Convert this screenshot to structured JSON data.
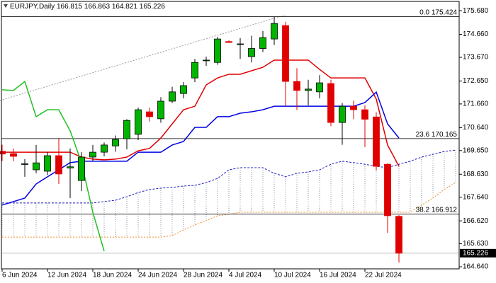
{
  "chart_data": {
    "type": "candlestick",
    "title": "EURJPY,Daily",
    "x": [
      "6 Jun 2024",
      null,
      null,
      null,
      "12 Jun 2024",
      null,
      null,
      null,
      "18 Jun 2024",
      null,
      null,
      null,
      "24 Jun 2024",
      null,
      null,
      null,
      "28 Jun 2024",
      null,
      null,
      null,
      "4 Jul 2024",
      null,
      null,
      null,
      "10 Jul 2024",
      null,
      null,
      null,
      "16 Jul 2024",
      null,
      null,
      null,
      "22 Jul 2024",
      null,
      null,
      null,
      null,
      null,
      null,
      null,
      null
    ],
    "open": [
      169.62,
      169.52,
      169.05,
      168.82,
      168.76,
      169.43,
      168.9,
      168.36,
      169.37,
      169.58,
      169.85,
      170.16,
      170.35,
      171.32,
      171.02,
      171.78,
      172.11,
      172.78,
      173.53,
      173.45,
      174.35,
      174.25,
      173.7,
      174.05,
      174.46,
      175.04,
      172.63,
      172.24,
      172.18,
      172.54,
      170.86,
      171.56,
      171.41,
      171.1,
      169.06,
      166.815,
      null,
      null,
      null,
      null,
      null
    ],
    "high": [
      169.9,
      169.73,
      169.28,
      169.89,
      169.6,
      170.19,
      169.74,
      169.58,
      169.89,
      170.0,
      170.3,
      171.0,
      171.5,
      171.5,
      171.95,
      172.4,
      172.6,
      173.6,
      173.7,
      174.55,
      174.4,
      174.5,
      174.6,
      174.8,
      175.42,
      175.2,
      173.2,
      172.7,
      172.9,
      172.7,
      171.7,
      171.8,
      171.6,
      171.3,
      169.1,
      166.863,
      null,
      null,
      null,
      null,
      null
    ],
    "low": [
      169.2,
      169.19,
      168.52,
      168.67,
      168.6,
      168.21,
      167.6,
      167.91,
      169.19,
      169.4,
      169.6,
      169.7,
      170.1,
      170.9,
      170.85,
      171.7,
      171.9,
      172.6,
      173.3,
      173.35,
      174.3,
      173.6,
      173.45,
      173.9,
      174.2,
      171.56,
      171.4,
      171.6,
      171.9,
      170.7,
      169.9,
      171.0,
      169.8,
      168.8,
      166.1,
      164.821,
      null,
      null,
      null,
      null,
      null
    ],
    "close": [
      169.5,
      169.4,
      169.08,
      169.12,
      169.43,
      168.64,
      168.95,
      169.37,
      169.58,
      169.89,
      170.13,
      170.95,
      171.41,
      171.11,
      171.78,
      172.18,
      172.45,
      173.45,
      173.55,
      174.46,
      174.31,
      174.25,
      174.05,
      174.52,
      175.13,
      172.63,
      172.24,
      172.3,
      172.57,
      170.86,
      171.56,
      171.41,
      171.0,
      168.97,
      166.84,
      165.226,
      null,
      null,
      null,
      null,
      null
    ],
    "bull_color": "#00b400",
    "bear_color": "#e00000",
    "lines": [
      {
        "color": "#e00000",
        "dash": "none",
        "values": [
          169.58,
          169.58,
          169.58,
          169.58,
          169.58,
          169.58,
          169.58,
          169.37,
          169.28,
          169.25,
          169.28,
          169.37,
          169.64,
          169.74,
          170.19,
          170.8,
          171.41,
          171.56,
          172.48,
          172.78,
          172.94,
          172.94,
          173.09,
          173.24,
          173.55,
          173.55,
          173.55,
          173.55,
          173.15,
          172.78,
          172.78,
          172.78,
          172.78,
          171.87,
          169.89,
          168.97,
          null,
          null,
          null,
          null,
          null
        ]
      },
      {
        "color": "#0000e0",
        "dash": "none",
        "values": [
          167.3,
          167.45,
          167.6,
          168.21,
          168.52,
          168.82,
          169.13,
          169.19,
          169.19,
          169.19,
          169.19,
          169.19,
          169.58,
          169.58,
          169.58,
          169.89,
          170.04,
          170.65,
          170.65,
          171.11,
          171.11,
          171.26,
          171.32,
          171.41,
          171.56,
          171.56,
          171.56,
          171.56,
          171.56,
          171.56,
          171.56,
          171.56,
          171.72,
          172.17,
          170.8,
          170.19,
          null,
          null,
          null,
          null,
          null
        ]
      },
      {
        "color": "#22c022",
        "dash": "none",
        "values": [
          172.27,
          172.24,
          172.63,
          171.11,
          171.41,
          171.41,
          170.5,
          169.13,
          166.99,
          165.31,
          null,
          null,
          null,
          null,
          null,
          null,
          null,
          null,
          null,
          null,
          null,
          null,
          null,
          null,
          null,
          null,
          null,
          null,
          null,
          null,
          null,
          null,
          null,
          null,
          null,
          null,
          null,
          null,
          null,
          null,
          null
        ]
      }
    ],
    "cloud": {
      "hatch_color": "#8890a8",
      "span_a": {
        "color": "#2020c0",
        "values": [
          167.39,
          167.39,
          167.39,
          167.39,
          167.39,
          167.39,
          167.39,
          167.39,
          167.39,
          167.45,
          167.51,
          167.66,
          167.84,
          167.97,
          168.03,
          168.06,
          168.12,
          168.15,
          168.27,
          168.45,
          168.82,
          168.91,
          168.91,
          168.91,
          168.67,
          168.52,
          168.67,
          168.73,
          168.82,
          169.06,
          169.19,
          169.13,
          169.06,
          168.97,
          168.91,
          169.06,
          169.19,
          169.37,
          169.49,
          169.61,
          169.67
        ]
      },
      "span_b": {
        "color": "#f09030",
        "values": [
          165.92,
          165.92,
          165.92,
          165.92,
          165.92,
          165.92,
          165.92,
          165.92,
          165.92,
          165.92,
          165.92,
          165.92,
          165.92,
          165.92,
          165.92,
          165.98,
          166.23,
          166.44,
          166.63,
          166.84,
          166.9,
          166.99,
          166.99,
          166.99,
          166.99,
          166.99,
          166.99,
          166.99,
          166.99,
          166.99,
          166.99,
          166.99,
          166.99,
          166.99,
          166.99,
          166.99,
          166.99,
          167.3,
          167.6,
          167.97,
          168.27
        ]
      }
    },
    "fib_levels": [
      {
        "ratio": "0.0",
        "value": 175.424
      },
      {
        "ratio": "23.6",
        "value": 170.165
      },
      {
        "ratio": "38.2",
        "value": 166.912
      }
    ],
    "ylim": [
      164.55,
      176.08
    ],
    "yticks": [
      {
        "value": 175.68,
        "label": "175.680"
      },
      {
        "value": 174.66,
        "label": "174.660"
      },
      {
        "value": 173.67,
        "label": "173.670"
      },
      {
        "value": 172.65,
        "label": "172.650"
      },
      {
        "value": 171.66,
        "label": "171.660"
      },
      {
        "value": 170.64,
        "label": "170.640"
      },
      {
        "value": 169.65,
        "label": "169.650"
      },
      {
        "value": 168.63,
        "label": "168.630"
      },
      {
        "value": 167.64,
        "label": "167.640"
      },
      {
        "value": 166.62,
        "label": "166.620"
      },
      {
        "value": 165.63,
        "label": "165.630"
      },
      {
        "value": 164.64,
        "label": "164.640"
      }
    ]
  }
}
